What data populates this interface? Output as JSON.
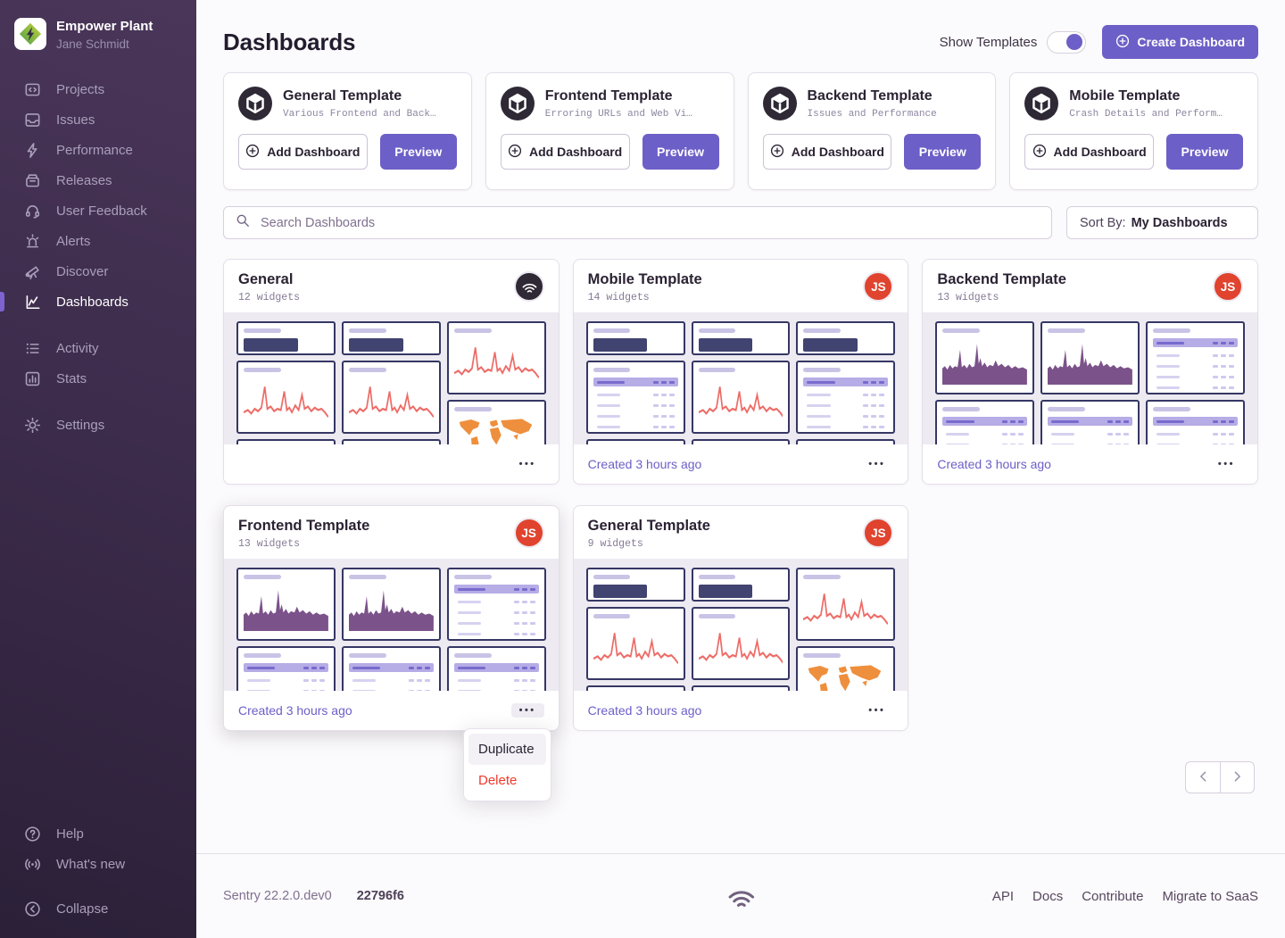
{
  "colors": {
    "accent": "#6c5fc7",
    "sidebar_top": "#4a3659",
    "sidebar_bottom": "#2b2038",
    "avatar_red": "#e0432e",
    "widget_navy": "#414370",
    "widget_border": "#353764",
    "line_red": "#ed6c67",
    "area_purple": "#7b528a",
    "map_orange": "#ee8f3d",
    "danger": "#f0382b"
  },
  "sidebar": {
    "org": {
      "name": "Empower Plant",
      "user": "Jane Schmidt"
    },
    "groups": [
      {
        "items": [
          {
            "label": "Projects",
            "icon": "projects-icon",
            "active": false
          },
          {
            "label": "Issues",
            "icon": "issues-icon",
            "active": false
          },
          {
            "label": "Performance",
            "icon": "performance-icon",
            "active": false
          },
          {
            "label": "Releases",
            "icon": "releases-icon",
            "active": false
          },
          {
            "label": "User Feedback",
            "icon": "user-feedback-icon",
            "active": false
          },
          {
            "label": "Alerts",
            "icon": "alerts-icon",
            "active": false
          },
          {
            "label": "Discover",
            "icon": "discover-icon",
            "active": false
          },
          {
            "label": "Dashboards",
            "icon": "dashboards-icon",
            "active": true
          }
        ]
      },
      {
        "items": [
          {
            "label": "Activity",
            "icon": "activity-icon",
            "active": false
          },
          {
            "label": "Stats",
            "icon": "stats-icon",
            "active": false
          }
        ]
      },
      {
        "items": [
          {
            "label": "Settings",
            "icon": "settings-icon",
            "active": false
          }
        ]
      }
    ],
    "bottom_items": [
      {
        "label": "Help",
        "icon": "help-icon"
      },
      {
        "label": "What's new",
        "icon": "whats-new-icon"
      }
    ],
    "collapse": {
      "label": "Collapse",
      "icon": "collapse-icon"
    }
  },
  "header": {
    "title": "Dashboards",
    "show_templates_label": "Show Templates",
    "toggle_state": "on",
    "create_label": "Create Dashboard"
  },
  "template_actions": {
    "add": "Add Dashboard",
    "preview": "Preview"
  },
  "templates": [
    {
      "title": "General Template",
      "description": "Various Frontend and Back…"
    },
    {
      "title": "Frontend Template",
      "description": "Erroring URLs and Web Vi…"
    },
    {
      "title": "Backend Template",
      "description": "Issues and Performance"
    },
    {
      "title": "Mobile Template",
      "description": "Crash Details and Perform…"
    }
  ],
  "search": {
    "placeholder": "Search Dashboards"
  },
  "sort": {
    "label": "Sort By:",
    "value": "My Dashboards"
  },
  "dashboards": [
    {
      "title": "General",
      "widgets": "12 widgets",
      "avatar": "sentry",
      "avatar_initials": "",
      "created": "",
      "raised": false,
      "dots_hovered": false,
      "preview": [
        [
          "bignumber",
          "line",
          "table"
        ],
        [
          "bignumber",
          "line",
          "table"
        ],
        [
          "line",
          "map"
        ]
      ]
    },
    {
      "title": "Mobile Template",
      "widgets": "14 widgets",
      "avatar": "js",
      "avatar_initials": "JS",
      "created": "Created 3 hours ago",
      "raised": false,
      "dots_hovered": false,
      "preview": [
        [
          "bignumber",
          "table",
          "table"
        ],
        [
          "bignumber",
          "line",
          "table"
        ],
        [
          "bignumber",
          "table",
          "table"
        ]
      ]
    },
    {
      "title": "Backend Template",
      "widgets": "13 widgets",
      "avatar": "js",
      "avatar_initials": "JS",
      "created": "Created 3 hours ago",
      "raised": false,
      "dots_hovered": false,
      "preview": [
        [
          "area",
          "table"
        ],
        [
          "area",
          "table"
        ],
        [
          "table",
          "table"
        ]
      ]
    },
    {
      "title": "Frontend Template",
      "widgets": "13 widgets",
      "avatar": "js",
      "avatar_initials": "JS",
      "created": "Created 3 hours ago",
      "raised": true,
      "dots_hovered": true,
      "preview": [
        [
          "area",
          "table"
        ],
        [
          "area",
          "table"
        ],
        [
          "table",
          "table"
        ]
      ]
    },
    {
      "title": "General Template",
      "widgets": "9 widgets",
      "avatar": "js",
      "avatar_initials": "JS",
      "created": "Created 3 hours ago",
      "raised": false,
      "dots_hovered": false,
      "preview": [
        [
          "bignumber",
          "line",
          "table"
        ],
        [
          "bignumber",
          "line",
          "table"
        ],
        [
          "line",
          "map"
        ]
      ]
    }
  ],
  "context_menu": {
    "items": [
      {
        "label": "Duplicate",
        "danger": false,
        "hovered": true
      },
      {
        "label": "Delete",
        "danger": true,
        "hovered": false
      }
    ]
  },
  "footer": {
    "version": "Sentry 22.2.0.dev0",
    "build": "22796f6",
    "links": [
      "API",
      "Docs",
      "Contribute",
      "Migrate to SaaS"
    ]
  }
}
